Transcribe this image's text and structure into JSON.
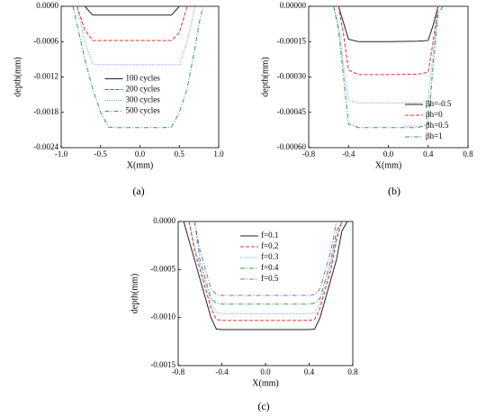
{
  "chart_data": [
    {
      "type": "line",
      "caption": "(a)",
      "xlabel": "X(mm)",
      "ylabel": "depth(mm)",
      "xlim": [
        -1.0,
        1.0
      ],
      "xticks": [
        {
          "value": -1.0,
          "label": "-1.0"
        },
        -0.5,
        {
          "value": 0,
          "label": "0.0"
        },
        0.5,
        {
          "value": 1.0,
          "label": "1.0"
        }
      ],
      "ylim": [
        -0.0024,
        0
      ],
      "yticks": [
        {
          "value": 0,
          "label": "0.0000"
        },
        {
          "value": -0.0006,
          "label": "-0.0006"
        },
        {
          "value": -0.0012,
          "label": "-0.0012"
        },
        {
          "value": -0.0018,
          "label": "-0.0018"
        },
        {
          "value": -0.0024,
          "label": "-0.0024"
        }
      ],
      "legend": "center",
      "x": [
        -0.85,
        -0.8,
        -0.75,
        -0.7,
        -0.6,
        -0.5,
        -0.4,
        -0.3,
        0,
        0.3,
        0.4,
        0.5,
        0.6,
        0.7,
        0.75,
        0.8
      ],
      "series": [
        {
          "name": "100 cycles",
          "color": "#222222",
          "dash": "solid",
          "values": [
            null,
            null,
            null,
            0,
            -0.00015,
            -0.00015,
            -0.00015,
            -0.00015,
            -0.00015,
            -0.00015,
            -0.00015,
            0,
            null,
            null,
            null,
            null
          ]
        },
        {
          "name": "200 cycles",
          "color": "#e03030",
          "dash": "dashed",
          "values": [
            null,
            0,
            -0.0002,
            -0.0004,
            -0.00058,
            -0.00058,
            -0.00058,
            -0.00058,
            -0.00058,
            -0.00058,
            -0.00058,
            -0.00045,
            0,
            null,
            null,
            null
          ]
        },
        {
          "name": "300 cycles",
          "color": "#6a8ff0",
          "dash": "dotted",
          "values": [
            null,
            0,
            -0.0003,
            -0.0006,
            -0.00098,
            -0.00099,
            -0.00099,
            -0.00099,
            -0.00099,
            -0.00099,
            -0.00099,
            -0.00099,
            -0.0006,
            0,
            null,
            null
          ]
        },
        {
          "name": "500 cycles",
          "color": "#2e9e5e",
          "dash": "dashdot",
          "values": [
            0,
            -0.0003,
            -0.0006,
            -0.0009,
            -0.0014,
            -0.0018,
            -0.00205,
            -0.00206,
            -0.00206,
            -0.00206,
            -0.00205,
            -0.0018,
            -0.0014,
            -0.0007,
            -0.0003,
            0
          ]
        }
      ]
    },
    {
      "type": "line",
      "caption": "(b)",
      "xlabel": "X(mm)",
      "ylabel": "depth(mm)",
      "xlim": [
        -0.8,
        0.8
      ],
      "xticks": [
        -0.8,
        -0.4,
        {
          "value": 0,
          "label": "0.0"
        },
        0.4,
        0.8
      ],
      "ylim": [
        -0.0006,
        0
      ],
      "yticks": [
        {
          "value": 0,
          "label": "0.00000"
        },
        {
          "value": -0.00015,
          "label": "-0.00015"
        },
        {
          "value": -0.0003,
          "label": "-0.00030"
        },
        {
          "value": -0.00045,
          "label": "-0.00045"
        },
        {
          "value": -0.0006,
          "label": "-0.00060"
        }
      ],
      "legend": "lower right",
      "x": [
        -0.55,
        -0.5,
        -0.45,
        -0.4,
        -0.3,
        0,
        0.3,
        0.4,
        0.45,
        0.5,
        0.55
      ],
      "series": [
        {
          "name": "βh=-0.5",
          "color": "#222222",
          "dash": "solid",
          "values": [
            null,
            0,
            -7e-05,
            -0.00014,
            -0.00015,
            -0.00015,
            -0.000148,
            -0.000145,
            -8e-05,
            0,
            null
          ]
        },
        {
          "name": "βh=0",
          "color": "#e03030",
          "dash": "dashed",
          "values": [
            null,
            0,
            -0.00012,
            -0.00027,
            -0.00029,
            -0.00029,
            -0.000288,
            -0.00028,
            -0.00015,
            0,
            null
          ]
        },
        {
          "name": "βh=0.5",
          "color": "#6a8ff0",
          "dash": "dotted",
          "values": [
            0,
            -8e-05,
            -0.00025,
            -0.0004,
            -0.00041,
            -0.00041,
            -0.00041,
            -0.0004,
            -0.0002,
            0,
            null
          ]
        },
        {
          "name": "βh=1",
          "color": "#2e9e5e",
          "dash": "dashdot",
          "values": [
            0,
            -0.0001,
            -0.0003,
            -0.0005,
            -0.000515,
            -0.000515,
            -0.000515,
            -0.0005,
            -0.00025,
            -3e-05,
            0
          ]
        }
      ]
    },
    {
      "type": "line",
      "caption": "(c)",
      "xlabel": "X(mm)",
      "ylabel": "depth(mm)",
      "xlim": [
        -0.8,
        0.8
      ],
      "xticks": [
        -0.8,
        -0.4,
        {
          "value": 0,
          "label": "0.0"
        },
        0.4,
        0.8
      ],
      "ylim": [
        -0.0015,
        0
      ],
      "yticks": [
        {
          "value": 0,
          "label": "0.0000"
        },
        {
          "value": -0.0005,
          "label": "-0.0005"
        },
        {
          "value": -0.001,
          "label": "-0.0010"
        },
        {
          "value": -0.0015,
          "label": "-0.0015"
        }
      ],
      "legend": "upper right",
      "x": [
        -0.75,
        -0.7,
        -0.65,
        -0.6,
        -0.5,
        -0.45,
        -0.4,
        0,
        0.4,
        0.45,
        0.5,
        0.6,
        0.65,
        0.7,
        0.75
      ],
      "series": [
        {
          "name": "f=0.1",
          "color": "#222222",
          "dash": "solid",
          "values": [
            0,
            -0.0002,
            -0.0004,
            -0.0006,
            -0.001,
            -0.00112,
            -0.001125,
            -0.001125,
            -0.001125,
            -0.00112,
            -0.001,
            -0.0006,
            -0.0004,
            -0.0001,
            0
          ]
        },
        {
          "name": "f=0.2",
          "color": "#e03030",
          "dash": "dashed",
          "values": [
            null,
            0,
            -0.0003,
            -0.0005,
            -0.0009,
            -0.00102,
            -0.00103,
            -0.00103,
            -0.00103,
            -0.00102,
            -0.0009,
            -0.0005,
            -0.0002,
            0,
            null
          ]
        },
        {
          "name": "f=0.3",
          "color": "#6a8ff0",
          "dash": "dotted",
          "values": [
            null,
            0,
            -0.00025,
            -0.00045,
            -0.00085,
            -0.00095,
            -0.00096,
            -0.00096,
            -0.00096,
            -0.00095,
            -0.00085,
            -0.00045,
            -0.00015,
            0,
            null
          ]
        },
        {
          "name": "f=0.4",
          "color": "#2e9e5e",
          "dash": "dashdot",
          "values": [
            null,
            null,
            0,
            -0.0004,
            -0.0008,
            -0.00085,
            -0.00086,
            -0.00086,
            -0.00086,
            -0.00085,
            -0.0008,
            -0.0004,
            -0.0001,
            0,
            null
          ]
        },
        {
          "name": "f=0.5",
          "color": "#8a6ad0",
          "dash": "dashdot",
          "values": [
            null,
            null,
            0,
            -0.0003,
            -0.0007,
            -0.00076,
            -0.00077,
            -0.00077,
            -0.00077,
            -0.00076,
            -0.0007,
            -0.0003,
            0,
            null,
            null
          ]
        }
      ]
    }
  ]
}
